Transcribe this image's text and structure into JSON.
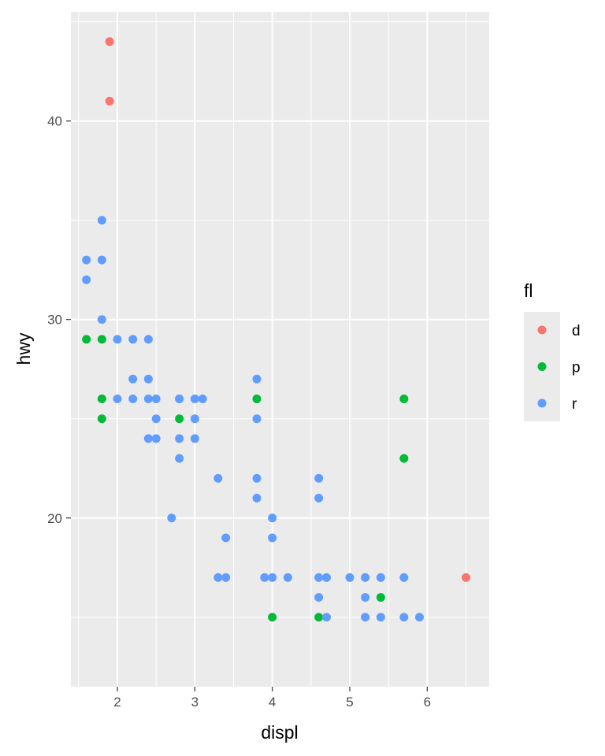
{
  "chart_data": {
    "type": "scatter",
    "title": "",
    "xlabel": "displ",
    "ylabel": "hwy",
    "xlim": [
      1.4,
      6.8
    ],
    "ylim": [
      11.5,
      45.5
    ],
    "x_ticks": [
      2,
      3,
      4,
      5,
      6
    ],
    "y_ticks": [
      20,
      30,
      40
    ],
    "grid": true,
    "legend": {
      "title": "fl",
      "position": "right",
      "entries": [
        {
          "label": "d",
          "color": "#F8766D"
        },
        {
          "label": "p",
          "color": "#00BA38"
        },
        {
          "label": "r",
          "color": "#619CFF"
        }
      ]
    },
    "series": [
      {
        "name": "d",
        "color": "#F8766D",
        "points": [
          [
            1.9,
            44
          ],
          [
            1.9,
            41
          ],
          [
            6.5,
            17
          ]
        ]
      },
      {
        "name": "p",
        "color": "#00BA38",
        "points": [
          [
            1.6,
            29
          ],
          [
            1.8,
            29
          ],
          [
            1.8,
            26
          ],
          [
            1.8,
            25
          ],
          [
            2.8,
            26
          ],
          [
            2.8,
            25
          ],
          [
            3.8,
            26
          ],
          [
            4.0,
            15
          ],
          [
            4.6,
            15
          ],
          [
            5.4,
            16
          ],
          [
            5.7,
            26
          ],
          [
            5.7,
            23
          ]
        ]
      },
      {
        "name": "r",
        "color": "#619CFF",
        "points": [
          [
            1.6,
            33
          ],
          [
            1.6,
            32
          ],
          [
            1.8,
            35
          ],
          [
            1.8,
            33
          ],
          [
            1.8,
            30
          ],
          [
            2.0,
            29
          ],
          [
            2.0,
            26
          ],
          [
            2.2,
            29
          ],
          [
            2.2,
            27
          ],
          [
            2.2,
            26
          ],
          [
            2.4,
            29
          ],
          [
            2.4,
            27
          ],
          [
            2.4,
            26
          ],
          [
            2.4,
            24
          ],
          [
            2.5,
            26
          ],
          [
            2.5,
            25
          ],
          [
            2.5,
            24
          ],
          [
            2.7,
            20
          ],
          [
            2.8,
            26
          ],
          [
            2.8,
            24
          ],
          [
            2.8,
            23
          ],
          [
            3.0,
            26
          ],
          [
            3.0,
            25
          ],
          [
            3.0,
            24
          ],
          [
            3.1,
            26
          ],
          [
            3.3,
            22
          ],
          [
            3.3,
            17
          ],
          [
            3.4,
            19
          ],
          [
            3.4,
            17
          ],
          [
            3.8,
            27
          ],
          [
            3.8,
            25
          ],
          [
            3.8,
            22
          ],
          [
            3.8,
            21
          ],
          [
            3.9,
            17
          ],
          [
            4.0,
            20
          ],
          [
            4.0,
            19
          ],
          [
            4.0,
            17
          ],
          [
            4.2,
            17
          ],
          [
            4.6,
            22
          ],
          [
            4.6,
            21
          ],
          [
            4.6,
            17
          ],
          [
            4.6,
            16
          ],
          [
            4.7,
            17
          ],
          [
            4.7,
            15
          ],
          [
            5.0,
            17
          ],
          [
            5.2,
            17
          ],
          [
            5.2,
            16
          ],
          [
            5.2,
            15
          ],
          [
            5.4,
            17
          ],
          [
            5.4,
            15
          ],
          [
            5.7,
            17
          ],
          [
            5.7,
            15
          ],
          [
            5.9,
            15
          ]
        ]
      }
    ]
  }
}
